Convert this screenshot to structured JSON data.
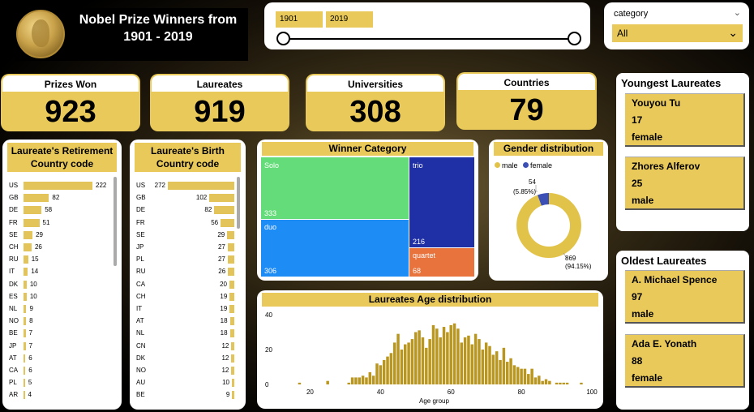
{
  "header": {
    "title": "Nobel Prize Winners from 1901 - 2019"
  },
  "slider": {
    "start": "1901",
    "end": "2019"
  },
  "category_filter": {
    "label": "category",
    "value": "All"
  },
  "kpis": [
    {
      "label": "Prizes Won",
      "value": "923"
    },
    {
      "label": "Laureates",
      "value": "919"
    },
    {
      "label": "Universities",
      "value": "308"
    },
    {
      "label": "Countries",
      "value": "79"
    }
  ],
  "colors": {
    "gold": "#e8c95a",
    "solo": "#65dc7a",
    "trio": "#1f2fa6",
    "duo": "#1e8cf5",
    "quartet": "#e8733c",
    "male": "#e2c34a",
    "female": "#3b4fb4"
  },
  "retirement": {
    "title": "Laureate's Retirement Country code",
    "rows": [
      {
        "code": "US",
        "value": 222
      },
      {
        "code": "GB",
        "value": 82
      },
      {
        "code": "DE",
        "value": 58
      },
      {
        "code": "FR",
        "value": 51
      },
      {
        "code": "SE",
        "value": 29
      },
      {
        "code": "CH",
        "value": 26
      },
      {
        "code": "RU",
        "value": 15
      },
      {
        "code": "IT",
        "value": 14
      },
      {
        "code": "DK",
        "value": 10
      },
      {
        "code": "ES",
        "value": 10
      },
      {
        "code": "NL",
        "value": 9
      },
      {
        "code": "NO",
        "value": 8
      },
      {
        "code": "BE",
        "value": 7
      },
      {
        "code": "JP",
        "value": 7
      },
      {
        "code": "AT",
        "value": 6
      },
      {
        "code": "CA",
        "value": 6
      },
      {
        "code": "PL",
        "value": 5
      },
      {
        "code": "AR",
        "value": 4
      }
    ]
  },
  "birth": {
    "title": "Laureate's Birth Country code",
    "rows": [
      {
        "code": "US",
        "value": 272
      },
      {
        "code": "GB",
        "value": 102
      },
      {
        "code": "DE",
        "value": 82
      },
      {
        "code": "FR",
        "value": 56
      },
      {
        "code": "SE",
        "value": 29
      },
      {
        "code": "JP",
        "value": 27
      },
      {
        "code": "PL",
        "value": 27
      },
      {
        "code": "RU",
        "value": 26
      },
      {
        "code": "CA",
        "value": 20
      },
      {
        "code": "CH",
        "value": 19
      },
      {
        "code": "IT",
        "value": 19
      },
      {
        "code": "AT",
        "value": 18
      },
      {
        "code": "NL",
        "value": 18
      },
      {
        "code": "CN",
        "value": 12
      },
      {
        "code": "DK",
        "value": 12
      },
      {
        "code": "NO",
        "value": 12
      },
      {
        "code": "AU",
        "value": 10
      },
      {
        "code": "BE",
        "value": 9
      }
    ]
  },
  "winner_category": {
    "title": "Winner Category",
    "items": [
      {
        "label": "Solo",
        "value": "333"
      },
      {
        "label": "trio",
        "value": "216"
      },
      {
        "label": "duo",
        "value": "306"
      },
      {
        "label": "quartet",
        "value": "68"
      }
    ]
  },
  "gender": {
    "title": "Gender distribution",
    "legend": [
      {
        "label": "male"
      },
      {
        "label": "female"
      }
    ],
    "female_label": "54",
    "female_pct": "(5.85%)",
    "male_label": "869",
    "male_pct": "(94.15%)",
    "male_value": 869,
    "female_value": 54
  },
  "age_chart": {
    "title": "Laureates Age distribution",
    "xlabel": "Age group"
  },
  "chart_data": {
    "type": "bar",
    "title": "Laureates Age distribution",
    "xlabel": "Age group",
    "ylabel": "",
    "xlim": [
      10,
      100
    ],
    "ylim": [
      0,
      40
    ],
    "x_ticks": [
      "20",
      "40",
      "60",
      "80",
      "100"
    ],
    "y_ticks": [
      "0",
      "20",
      "40"
    ],
    "x": [
      17,
      25,
      31,
      32,
      33,
      34,
      35,
      36,
      37,
      38,
      39,
      40,
      41,
      42,
      43,
      44,
      45,
      46,
      47,
      48,
      49,
      50,
      51,
      52,
      53,
      54,
      55,
      56,
      57,
      58,
      59,
      60,
      61,
      62,
      63,
      64,
      65,
      66,
      67,
      68,
      69,
      70,
      71,
      72,
      73,
      74,
      75,
      76,
      77,
      78,
      79,
      80,
      81,
      82,
      83,
      84,
      85,
      86,
      87,
      88,
      90,
      91,
      92,
      93,
      97
    ],
    "values": [
      1,
      2,
      1,
      4,
      4,
      4,
      5,
      4,
      7,
      5,
      12,
      11,
      14,
      16,
      18,
      24,
      29,
      20,
      23,
      24,
      26,
      30,
      31,
      27,
      21,
      26,
      34,
      32,
      27,
      33,
      30,
      34,
      35,
      32,
      24,
      27,
      28,
      23,
      29,
      26,
      20,
      24,
      22,
      17,
      19,
      14,
      21,
      13,
      15,
      11,
      10,
      9,
      9,
      6,
      9,
      4,
      5,
      2,
      3,
      2,
      1,
      1,
      1,
      1,
      1
    ]
  },
  "youngest": {
    "title": "Youngest Laureates",
    "people": [
      {
        "name": "Youyou Tu",
        "age": "17",
        "gender": "female"
      },
      {
        "name": "Zhores Alferov",
        "age": "25",
        "gender": "male"
      }
    ]
  },
  "oldest": {
    "title": "Oldest Laureates",
    "people": [
      {
        "name": "A. Michael Spence",
        "age": "97",
        "gender": "male"
      },
      {
        "name": "Ada E. Yonath",
        "age": "88",
        "gender": "female"
      }
    ]
  }
}
